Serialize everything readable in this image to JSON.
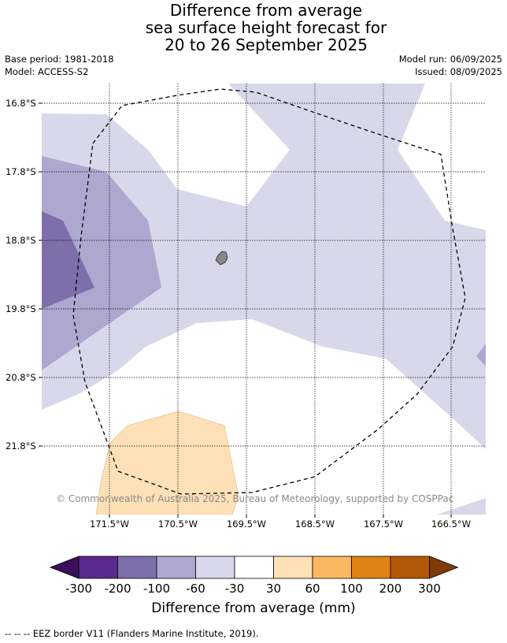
{
  "title": {
    "line1": "Difference from average",
    "line2": "sea surface height forecast for",
    "line3": "20 to 26 September 2025"
  },
  "meta": {
    "base_period": "Base period: 1981-2018",
    "model": "Model: ACCESS-S2",
    "model_run": "Model run: 06/09/2025",
    "issued": "Issued: 08/09/2025"
  },
  "map": {
    "lat_labels": [
      "16.8°S",
      "17.8°S",
      "18.8°S",
      "19.8°S",
      "20.8°S",
      "21.8°S"
    ],
    "lon_labels": [
      "171.5°W",
      "170.5°W",
      "169.5°W",
      "168.5°W",
      "167.5°W",
      "166.5°W"
    ],
    "credit": "© Commonwealth of Australia 2025, Bureau of Meteorology, supported by COSPPac",
    "colors": {
      "land": "#888888",
      "eez_line": "#000000",
      "gridline": "#000000"
    }
  },
  "colorbar": {
    "title": "Difference from average (mm)",
    "ticks": [
      "-300",
      "-200",
      "-100",
      "-60",
      "-30",
      "30",
      "60",
      "100",
      "200",
      "300"
    ],
    "colors": [
      "#3b0f5a",
      "#5a2a8e",
      "#7e6fab",
      "#aea8d0",
      "#d8d8ea",
      "#ffffff",
      "#fde0b6",
      "#fbb862",
      "#e08314",
      "#b35806",
      "#7f3b08"
    ]
  },
  "eez_legend": "--  --  -- EEZ border V11 (Flanders Marine Institute, 2019)."
}
